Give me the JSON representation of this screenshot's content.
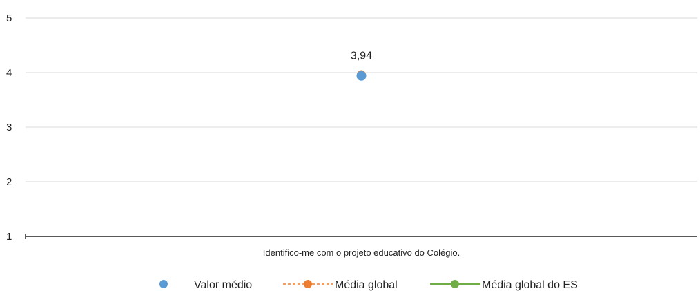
{
  "chart_data": {
    "type": "scatter",
    "categories": [
      "Identifico-me com o projeto educativo do Colégio."
    ],
    "ylim": [
      1,
      5
    ],
    "yticks": [
      1,
      2,
      3,
      4,
      5
    ],
    "grid": true,
    "legend_position": "bottom",
    "series": [
      {
        "name": "Valor médio",
        "values": [
          3.94
        ],
        "color": "#5B9BD5",
        "style": "marker",
        "data_label": "3,94"
      },
      {
        "name": "Média global",
        "values": [
          3.96
        ],
        "color": "#ED7D31",
        "style": "dashed-line-marker"
      },
      {
        "name": "Média global do ES",
        "values": [
          3.96
        ],
        "color": "#70AD47",
        "style": "solid-line-marker"
      }
    ]
  }
}
